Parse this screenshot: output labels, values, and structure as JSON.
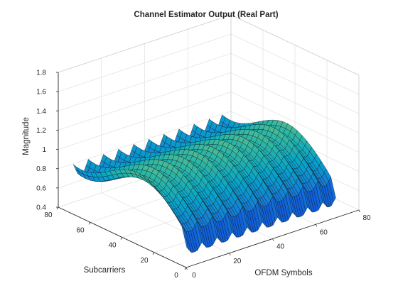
{
  "chart_data": {
    "type": "surface",
    "title": "Channel Estimator Output (Real Part)",
    "xlabel": "OFDM Symbols",
    "ylabel": "Subcarriers",
    "zlabel": "Magnitude",
    "xlim": [
      0,
      80
    ],
    "ylim": [
      0,
      80
    ],
    "zlim": [
      0.4,
      1.8
    ],
    "xticks": [
      0,
      20,
      40,
      60,
      80
    ],
    "yticks": [
      0,
      20,
      40,
      60,
      80
    ],
    "zticks": [
      0.4,
      0.6,
      0.8,
      1,
      1.2,
      1.4,
      1.6,
      1.8
    ],
    "grid": true,
    "colormap": "parula",
    "colormap_colors": [
      "#352a87",
      "#0f5cdd",
      "#1481d6",
      "#06a4ca",
      "#2eb7a4",
      "#87bf77",
      "#d1bb59",
      "#fec832",
      "#f9fb0e"
    ],
    "x_range": [
      1,
      70
    ],
    "y_range": [
      1,
      72
    ],
    "pilot_symbols": [
      1,
      8,
      15,
      22,
      29,
      36,
      43,
      50,
      57,
      64,
      70
    ],
    "z_range_observed": [
      0.45,
      1.68
    ]
  }
}
